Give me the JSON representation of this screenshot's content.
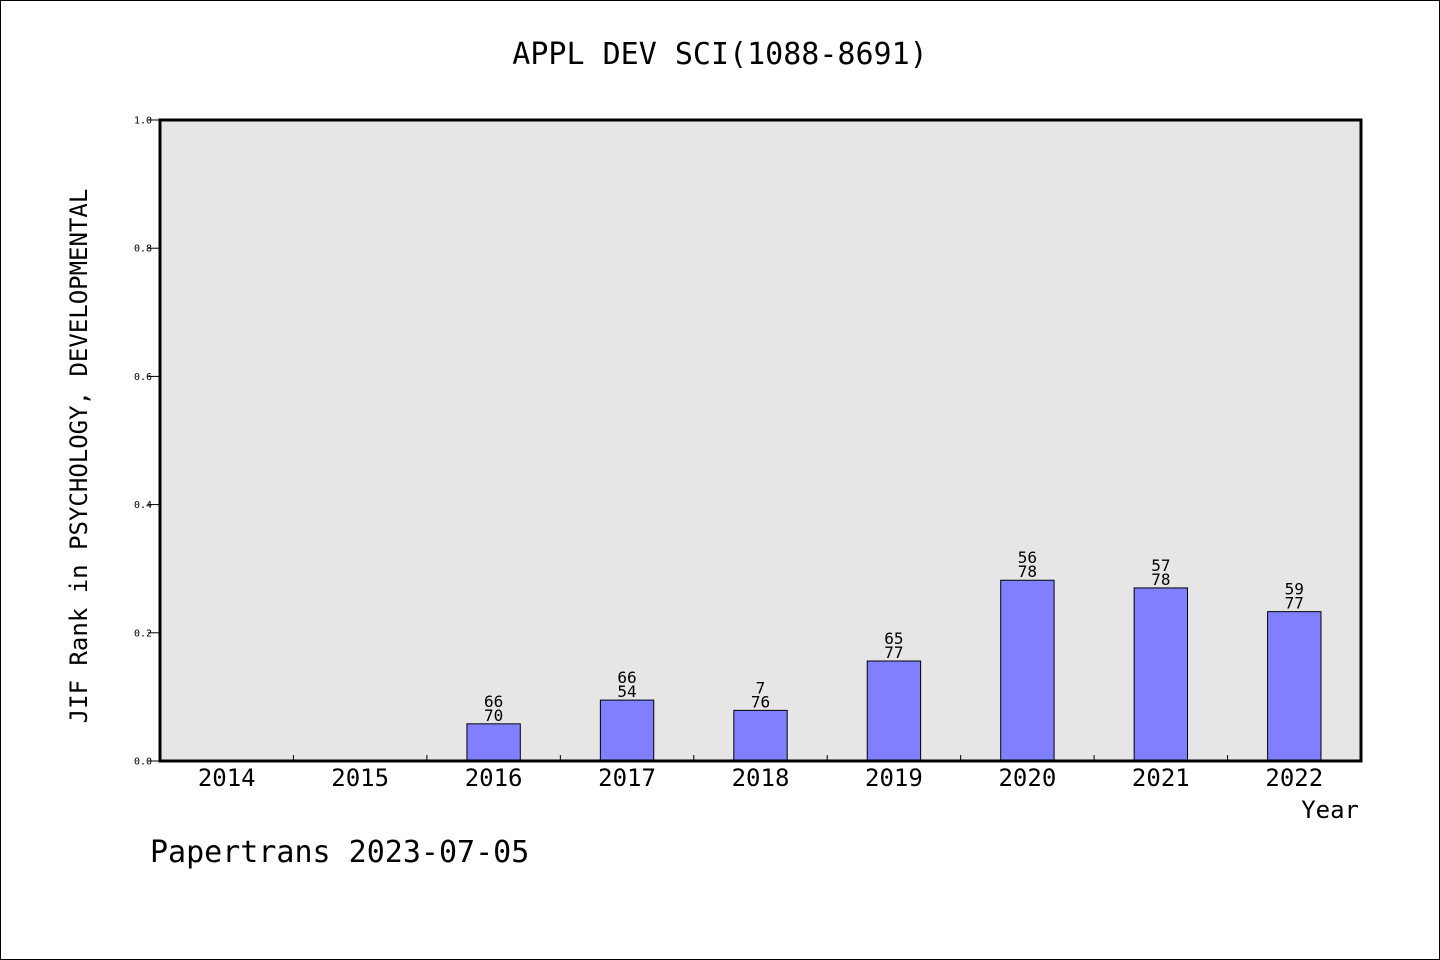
{
  "chart_data": {
    "type": "bar",
    "title": "APPL DEV SCI(1088-8691)",
    "xlabel": "Year",
    "ylabel": "JIF Rank in PSYCHOLOGY, DEVELOPMENTAL",
    "categories": [
      "2014",
      "2015",
      "2016",
      "2017",
      "2018",
      "2019",
      "2020",
      "2021",
      "2022"
    ],
    "values": [
      null,
      null,
      0.058,
      0.095,
      0.079,
      0.156,
      0.282,
      0.27,
      0.233
    ],
    "bar_labels": [
      null,
      null,
      [
        "66",
        "70"
      ],
      [
        "66",
        "54"
      ],
      [
        "7",
        "76"
      ],
      [
        "65",
        "77"
      ],
      [
        "56",
        "78"
      ],
      [
        "57",
        "78"
      ],
      [
        "59",
        "77"
      ]
    ],
    "ylim": [
      0,
      1.0
    ],
    "yticks": [
      0.0,
      0.2,
      0.4,
      0.6,
      0.8,
      1.0
    ],
    "ytick_labels": [
      "0.0",
      "0.2",
      "0.4",
      "0.6",
      "0.8",
      "1.0"
    ],
    "grid": false,
    "legend": "none",
    "colors": {
      "bar": "#8080ff",
      "plot_bg": "#e6e6e6",
      "frame": "#000000"
    }
  },
  "footer": "Papertrans 2023-07-05"
}
